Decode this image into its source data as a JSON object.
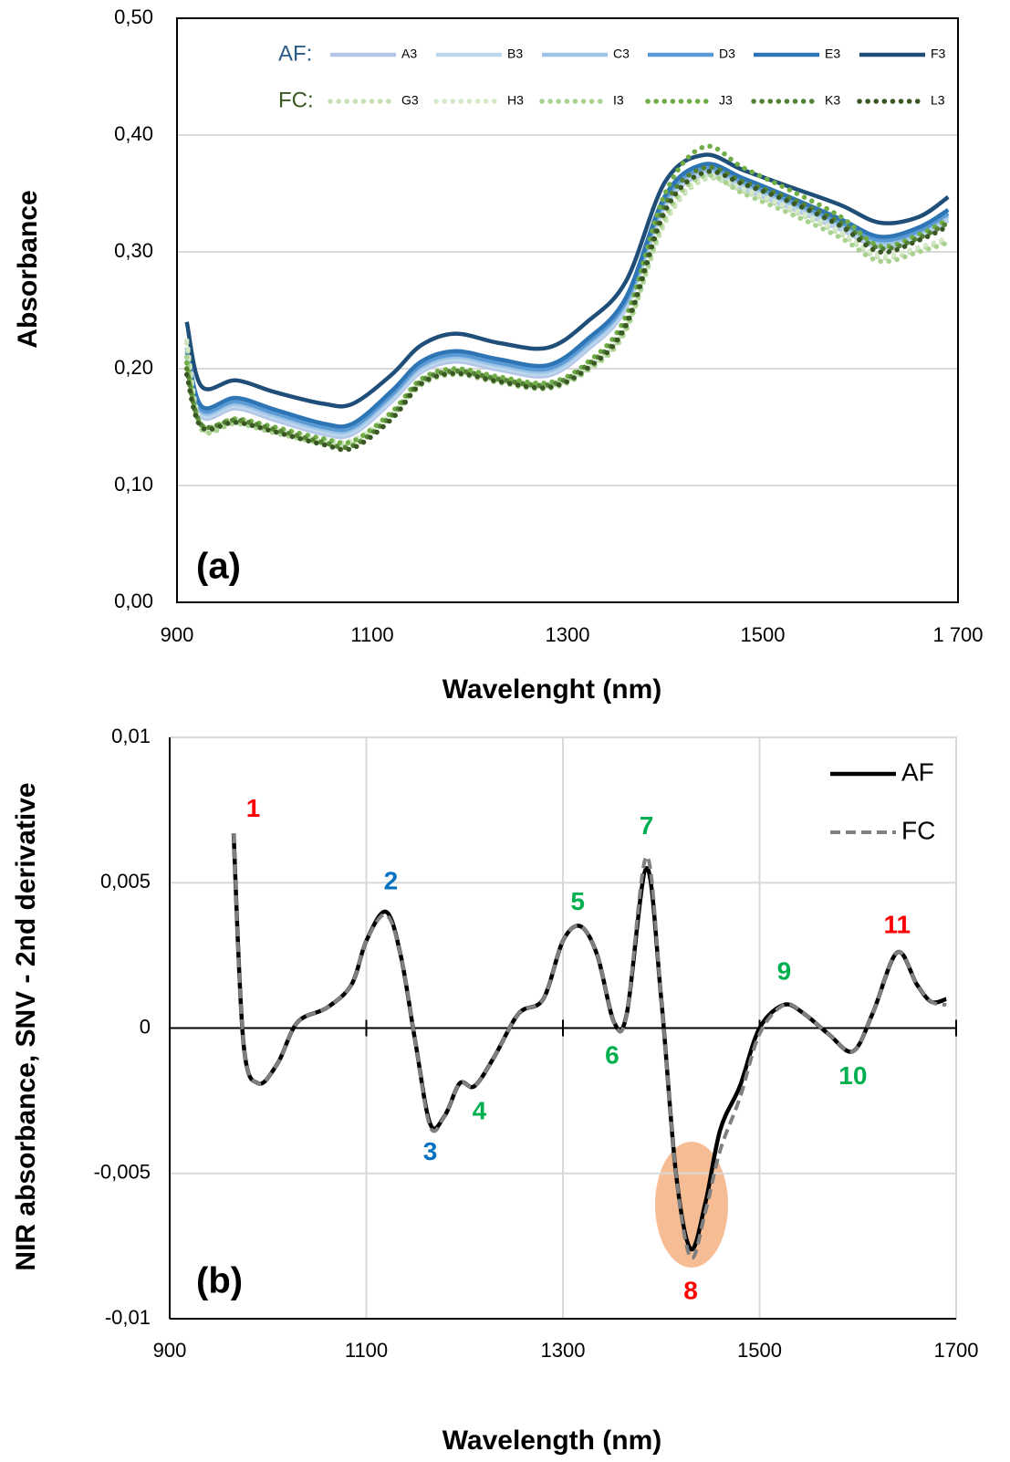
{
  "chart_data": [
    {
      "type": "line",
      "panel_label": "(a)",
      "y_label": "Absorbance",
      "x_label": "Wavelenght (nm)",
      "xlim": [
        900,
        1700
      ],
      "xticks": [
        900,
        1100,
        1300,
        1500,
        {
          "value": 1700,
          "label": "1 700"
        }
      ],
      "ylim": [
        0,
        0.5
      ],
      "yticks": [
        {
          "value": 0,
          "label": "0,00"
        },
        {
          "value": 0.1,
          "label": "0,10"
        },
        {
          "value": 0.2,
          "label": "0,20"
        },
        {
          "value": 0.3,
          "label": "0,30"
        },
        {
          "value": 0.4,
          "label": "0,40"
        },
        {
          "value": 0.5,
          "label": "0,50"
        }
      ],
      "grid": "y",
      "frame": "box",
      "x": [
        910,
        925,
        960,
        1000,
        1050,
        1080,
        1120,
        1150,
        1185,
        1230,
        1280,
        1320,
        1360,
        1400,
        1440,
        1480,
        1530,
        1580,
        1620,
        1660,
        1690
      ],
      "groups": [
        {
          "name": "AF:",
          "color": "#2e5c8a",
          "series": [
            {
              "name": "A3",
              "color": "#b4c7e7",
              "dash": "solid",
              "values": [
                0.209,
                0.159,
                0.166,
                0.156,
                0.144,
                0.144,
                0.172,
                0.197,
                0.206,
                0.199,
                0.194,
                0.216,
                0.252,
                0.339,
                0.366,
                0.354,
                0.337,
                0.319,
                0.304,
                0.312,
                0.327
              ]
            },
            {
              "name": "B3",
              "color": "#bdd7ee",
              "dash": "solid",
              "values": [
                0.211,
                0.161,
                0.168,
                0.158,
                0.146,
                0.146,
                0.174,
                0.199,
                0.208,
                0.201,
                0.196,
                0.218,
                0.254,
                0.341,
                0.368,
                0.356,
                0.339,
                0.321,
                0.306,
                0.314,
                0.329
              ]
            },
            {
              "name": "C3",
              "color": "#9dc3e6",
              "dash": "solid",
              "values": [
                0.213,
                0.163,
                0.17,
                0.16,
                0.148,
                0.148,
                0.176,
                0.201,
                0.21,
                0.203,
                0.198,
                0.22,
                0.256,
                0.343,
                0.37,
                0.358,
                0.341,
                0.323,
                0.308,
                0.316,
                0.331
              ]
            },
            {
              "name": "D3",
              "color": "#5b9bd5",
              "dash": "solid",
              "values": [
                0.215,
                0.165,
                0.172,
                0.162,
                0.15,
                0.15,
                0.178,
                0.203,
                0.212,
                0.205,
                0.2,
                0.222,
                0.258,
                0.345,
                0.372,
                0.36,
                0.343,
                0.325,
                0.31,
                0.318,
                0.333
              ]
            },
            {
              "name": "E3",
              "color": "#2e75b6",
              "dash": "solid",
              "values": [
                0.218,
                0.168,
                0.175,
                0.165,
                0.153,
                0.153,
                0.181,
                0.206,
                0.215,
                0.208,
                0.203,
                0.225,
                0.261,
                0.348,
                0.375,
                0.363,
                0.346,
                0.328,
                0.313,
                0.321,
                0.336
              ]
            },
            {
              "name": "F3",
              "color": "#1f4e79",
              "dash": "solid",
              "values": [
                0.24,
                0.185,
                0.19,
                0.18,
                0.17,
                0.17,
                0.195,
                0.22,
                0.23,
                0.222,
                0.218,
                0.24,
                0.275,
                0.36,
                0.383,
                0.37,
                0.355,
                0.34,
                0.325,
                0.33,
                0.347
              ]
            }
          ]
        },
        {
          "name": "FC:",
          "color": "#3a5a23",
          "series": [
            {
              "name": "G3",
              "color": "#c5e0b4",
              "dash": "dot",
              "values": [
                0.222,
                0.15,
                0.155,
                0.147,
                0.138,
                0.137,
                0.16,
                0.188,
                0.197,
                0.19,
                0.185,
                0.2,
                0.235,
                0.325,
                0.362,
                0.352,
                0.335,
                0.315,
                0.295,
                0.302,
                0.31
              ]
            },
            {
              "name": "H3",
              "color": "#d5e8c8",
              "dash": "dot",
              "values": [
                0.224,
                0.152,
                0.157,
                0.149,
                0.14,
                0.139,
                0.162,
                0.19,
                0.199,
                0.192,
                0.187,
                0.202,
                0.237,
                0.327,
                0.364,
                0.354,
                0.337,
                0.317,
                0.297,
                0.304,
                0.312
              ]
            },
            {
              "name": "I3",
              "color": "#a9d18e",
              "dash": "dot",
              "values": [
                0.21,
                0.148,
                0.153,
                0.145,
                0.136,
                0.135,
                0.158,
                0.186,
                0.195,
                0.188,
                0.183,
                0.198,
                0.233,
                0.33,
                0.365,
                0.35,
                0.332,
                0.312,
                0.292,
                0.3,
                0.308
              ]
            },
            {
              "name": "J3",
              "color": "#70ad47",
              "dash": "dot",
              "values": [
                0.205,
                0.152,
                0.157,
                0.15,
                0.14,
                0.138,
                0.163,
                0.191,
                0.2,
                0.193,
                0.188,
                0.205,
                0.245,
                0.35,
                0.39,
                0.372,
                0.352,
                0.33,
                0.305,
                0.315,
                0.328
              ]
            },
            {
              "name": "K3",
              "color": "#548235",
              "dash": "dot",
              "values": [
                0.2,
                0.152,
                0.156,
                0.148,
                0.137,
                0.134,
                0.16,
                0.189,
                0.198,
                0.191,
                0.186,
                0.203,
                0.24,
                0.34,
                0.372,
                0.36,
                0.345,
                0.325,
                0.303,
                0.312,
                0.325
              ]
            },
            {
              "name": "L3",
              "color": "#385723",
              "dash": "dot",
              "values": [
                0.195,
                0.15,
                0.154,
                0.146,
                0.135,
                0.132,
                0.157,
                0.187,
                0.196,
                0.189,
                0.184,
                0.2,
                0.237,
                0.335,
                0.368,
                0.358,
                0.342,
                0.322,
                0.3,
                0.31,
                0.322
              ]
            }
          ]
        }
      ]
    },
    {
      "type": "line",
      "panel_label": "(b)",
      "y_label": "NIR absorbance, SNV - 2nd derivative",
      "x_label": "Wavelength (nm)",
      "xlim": [
        900,
        1700
      ],
      "xticks": [
        900,
        1100,
        1300,
        1500,
        1700
      ],
      "ylim": [
        -0.01,
        0.01
      ],
      "yticks": [
        {
          "value": -0.01,
          "label": "-0,01"
        },
        {
          "value": -0.005,
          "label": "-0,005"
        },
        0,
        {
          "value": 0.005,
          "label": "0,005"
        },
        {
          "value": 0.01,
          "label": "0,01"
        }
      ],
      "grid": "both",
      "frame": "zero-axis",
      "legend": "top-right",
      "x": [
        965,
        975,
        990,
        1010,
        1030,
        1060,
        1085,
        1100,
        1120,
        1135,
        1150,
        1165,
        1180,
        1195,
        1210,
        1230,
        1255,
        1280,
        1300,
        1318,
        1335,
        1352,
        1365,
        1385,
        1400,
        1415,
        1430,
        1445,
        1460,
        1480,
        1500,
        1525,
        1545,
        1570,
        1595,
        1615,
        1640,
        1660,
        1675,
        1690
      ],
      "series": [
        {
          "name": "AF",
          "color": "#000000",
          "dash": "solid",
          "values": [
            0.0067,
            -0.0005,
            -0.0019,
            -0.0012,
            0.0002,
            0.0007,
            0.0015,
            0.003,
            0.004,
            0.0025,
            -0.0005,
            -0.0033,
            -0.003,
            -0.0019,
            -0.002,
            -0.001,
            0.0005,
            0.001,
            0.003,
            0.0035,
            0.0025,
            0.0002,
            0.0005,
            0.0055,
            0.001,
            -0.005,
            -0.0076,
            -0.006,
            -0.0035,
            -0.002,
            0,
            0.0008,
            0.0005,
            -0.0002,
            -0.0008,
            0.0005,
            0.0026,
            0.0015,
            0.0009,
            0.001
          ]
        },
        {
          "name": "FC",
          "color": "#808080",
          "dash": "dash",
          "values": [
            0.0067,
            -0.0005,
            -0.0019,
            -0.0012,
            0.0002,
            0.0007,
            0.0015,
            0.003,
            0.0039,
            0.0025,
            -0.0005,
            -0.0034,
            -0.003,
            -0.0019,
            -0.002,
            -0.001,
            0.0005,
            0.001,
            0.003,
            0.0035,
            0.0025,
            0.0002,
            0.0005,
            0.0059,
            0.001,
            -0.005,
            -0.0079,
            -0.0063,
            -0.0042,
            -0.0024,
            -0.0002,
            0.0008,
            0.0005,
            -0.0002,
            -0.0008,
            0.0005,
            0.0026,
            0.0015,
            0.0009,
            0.0008
          ]
        }
      ],
      "annotations": [
        {
          "text": "1",
          "x": 985,
          "y": 0.0075,
          "color": "#ff0000"
        },
        {
          "text": "2",
          "x": 1125,
          "y": 0.005,
          "color": "#0070c0"
        },
        {
          "text": "3",
          "x": 1165,
          "y": -0.0043,
          "color": "#0070c0"
        },
        {
          "text": "4",
          "x": 1215,
          "y": -0.0029,
          "color": "#00b050"
        },
        {
          "text": "5",
          "x": 1315,
          "y": 0.0043,
          "color": "#00b050"
        },
        {
          "text": "6",
          "x": 1350,
          "y": -0.001,
          "color": "#00b050"
        },
        {
          "text": "7",
          "x": 1385,
          "y": 0.0069,
          "color": "#00b050"
        },
        {
          "text": "8",
          "x": 1430,
          "y": -0.0091,
          "color": "#ff0000"
        },
        {
          "text": "9",
          "x": 1525,
          "y": 0.0019,
          "color": "#00b050"
        },
        {
          "text": "10",
          "x": 1595,
          "y": -0.0017,
          "color": "#00b050"
        },
        {
          "text": "11",
          "x": 1640,
          "y": 0.0035,
          "color": "#ff0000"
        }
      ]
    }
  ]
}
